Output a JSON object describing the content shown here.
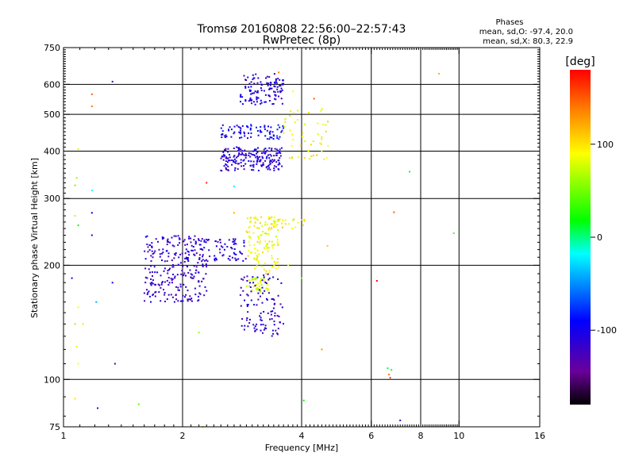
{
  "chart_data": {
    "type": "scatter",
    "title": "Tromsø 20160808 22:56:00–22:57:43",
    "subtitle": "RwPretec (8p)",
    "xlabel": "Frequency [MHz]",
    "ylabel": "Stationary phase Virtual Height [km]",
    "x_scale": "log",
    "y_scale": "log",
    "xlim": [
      1,
      16
    ],
    "ylim": [
      75,
      750
    ],
    "x_ticks": [
      1,
      2,
      4,
      6,
      8,
      10,
      16
    ],
    "x_tick_labels": [
      "1",
      "2",
      "4",
      "6",
      "8",
      "10",
      "16"
    ],
    "y_ticks": [
      75,
      100,
      200,
      300,
      400,
      500,
      600,
      750
    ],
    "y_tick_labels": [
      "75",
      "100",
      "200",
      "300",
      "400",
      "500",
      "600",
      "750"
    ],
    "grid": true,
    "stats": {
      "title": "Phases",
      "line_o": "mean, sd,O: -97.4, 20.0",
      "line_x": "mean, sd,X:  80.3, 22.9"
    },
    "colorbar": {
      "label": "[deg]",
      "range": [
        -180,
        180
      ],
      "ticks": [
        100,
        0,
        -100
      ],
      "tick_labels": [
        "100",
        "0",
        "-100"
      ],
      "placement": "right"
    },
    "clusters": [
      {
        "f_range": [
          2.8,
          3.6
        ],
        "h_range": [
          530,
          640
        ],
        "phase": -110,
        "n": 120
      },
      {
        "f_range": [
          2.5,
          3.6
        ],
        "h_range": [
          430,
          470
        ],
        "phase": -95,
        "n": 80
      },
      {
        "f_range": [
          2.5,
          3.6
        ],
        "h_range": [
          355,
          410
        ],
        "phase": -110,
        "n": 190
      },
      {
        "f_range": [
          3.6,
          4.7
        ],
        "h_range": [
          380,
          520
        ],
        "phase": 90,
        "n": 50
      },
      {
        "f_range": [
          1.6,
          2.3
        ],
        "h_range": [
          160,
          240
        ],
        "phase": -115,
        "n": 260
      },
      {
        "f_range": [
          2.2,
          2.9
        ],
        "h_range": [
          205,
          235
        ],
        "phase": -110,
        "n": 70
      },
      {
        "f_range": [
          2.9,
          3.5
        ],
        "h_range": [
          190,
          270
        ],
        "phase": 90,
        "n": 120
      },
      {
        "f_range": [
          3.4,
          4.1
        ],
        "h_range": [
          250,
          265
        ],
        "phase": 95,
        "n": 20
      },
      {
        "f_range": [
          2.9,
          3.3
        ],
        "h_range": [
          170,
          185
        ],
        "phase": 80,
        "n": 40
      },
      {
        "f_range": [
          2.8,
          3.6
        ],
        "h_range": [
          130,
          190
        ],
        "phase": -115,
        "n": 110
      }
    ],
    "points": [
      {
        "f": 1.33,
        "h": 610,
        "phase": -120
      },
      {
        "f": 1.18,
        "h": 565,
        "phase": 150
      },
      {
        "f": 1.18,
        "h": 525,
        "phase": 140
      },
      {
        "f": 1.09,
        "h": 405,
        "phase": 100
      },
      {
        "f": 1.08,
        "h": 340,
        "phase": 60
      },
      {
        "f": 1.07,
        "h": 325,
        "phase": 50
      },
      {
        "f": 1.18,
        "h": 315,
        "phase": -20
      },
      {
        "f": 1.07,
        "h": 270,
        "phase": 70
      },
      {
        "f": 1.09,
        "h": 255,
        "phase": 20
      },
      {
        "f": 1.18,
        "h": 275,
        "phase": -90
      },
      {
        "f": 1.18,
        "h": 240,
        "phase": -100
      },
      {
        "f": 1.05,
        "h": 185,
        "phase": -100
      },
      {
        "f": 1.09,
        "h": 155,
        "phase": 90
      },
      {
        "f": 1.21,
        "h": 160,
        "phase": -40
      },
      {
        "f": 1.33,
        "h": 180,
        "phase": -100
      },
      {
        "f": 1.07,
        "h": 140,
        "phase": 60
      },
      {
        "f": 1.12,
        "h": 140,
        "phase": 100
      },
      {
        "f": 1.08,
        "h": 122,
        "phase": 80
      },
      {
        "f": 1.09,
        "h": 110,
        "phase": 90
      },
      {
        "f": 1.35,
        "h": 110,
        "phase": -130
      },
      {
        "f": 1.07,
        "h": 89,
        "phase": 100
      },
      {
        "f": 1.22,
        "h": 84,
        "phase": -120
      },
      {
        "f": 1.55,
        "h": 86,
        "phase": 40
      },
      {
        "f": 2.25,
        "h": 75,
        "phase": 110
      },
      {
        "f": 2.2,
        "h": 133,
        "phase": 60
      },
      {
        "f": 2.3,
        "h": 330,
        "phase": 170
      },
      {
        "f": 2.7,
        "h": 323,
        "phase": -20
      },
      {
        "f": 3.5,
        "h": 645,
        "phase": 140
      },
      {
        "f": 3.8,
        "h": 575,
        "phase": 90
      },
      {
        "f": 4.3,
        "h": 550,
        "phase": 150
      },
      {
        "f": 2.7,
        "h": 275,
        "phase": 120
      },
      {
        "f": 3.7,
        "h": 200,
        "phase": 80
      },
      {
        "f": 4.0,
        "h": 185,
        "phase": 50
      },
      {
        "f": 4.65,
        "h": 225,
        "phase": 110
      },
      {
        "f": 4.5,
        "h": 120,
        "phase": 130
      },
      {
        "f": 4.05,
        "h": 88,
        "phase": 20
      },
      {
        "f": 6.2,
        "h": 182,
        "phase": 180
      },
      {
        "f": 6.85,
        "h": 276,
        "phase": 150
      },
      {
        "f": 7.5,
        "h": 353,
        "phase": 10
      },
      {
        "f": 8.9,
        "h": 640,
        "phase": 120
      },
      {
        "f": 9.7,
        "h": 243,
        "phase": 40
      },
      {
        "f": 6.6,
        "h": 107,
        "phase": 10
      },
      {
        "f": 6.75,
        "h": 106,
        "phase": 10
      },
      {
        "f": 6.65,
        "h": 103,
        "phase": 140
      },
      {
        "f": 6.7,
        "h": 101,
        "phase": 160
      },
      {
        "f": 7.1,
        "h": 78,
        "phase": -120
      }
    ]
  }
}
